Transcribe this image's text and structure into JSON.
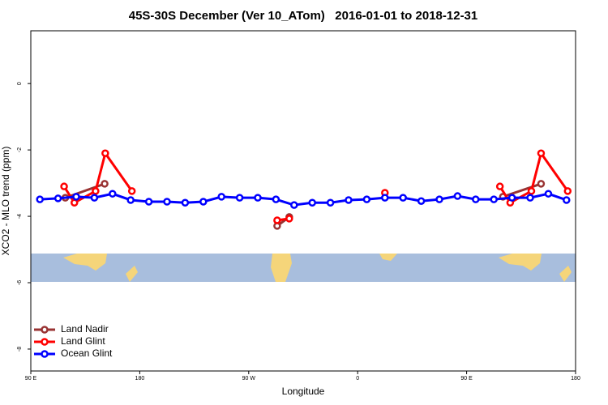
{
  "chart_data": {
    "type": "line",
    "title": "45S-30S December (Ver 10_ATom)   2016-01-01 to 2018-12-31",
    "xlabel": "Longitude",
    "ylabel": "XCO2 - MLO trend (ppm)",
    "xlim": [
      90,
      540
    ],
    "xticks": [
      {
        "value": 90,
        "label": "90 E"
      },
      180,
      {
        "value": 270,
        "label": "90 W"
      },
      {
        "value": 360,
        "label": "0"
      },
      {
        "value": 450,
        "label": "90 E"
      },
      {
        "value": 540,
        "label": "180"
      }
    ],
    "ylim": [
      -8.66,
      1.59
    ],
    "yticks": [
      0,
      -2,
      -4,
      -6,
      -8
    ],
    "legend": "bottom-left",
    "series": [
      {
        "name": "Land Nadir",
        "color": "#993333",
        "x": [
          118.5,
          151,
          null,
          293.5,
          303.5,
          null,
          480,
          511.5
        ],
        "values": [
          -3.44,
          -3.02,
          null,
          -4.29,
          -4.02,
          null,
          -3.41,
          -3.02
        ]
      },
      {
        "name": "Land Glint",
        "color": "#ff0000",
        "x": [
          117.5,
          126,
          143.5,
          151.5,
          173.5,
          null,
          293.5,
          303.5,
          null,
          382.5,
          null,
          477.5,
          486,
          503.5,
          511.5,
          533.5
        ],
        "values": [
          -3.1,
          -3.59,
          -3.24,
          -2.1,
          -3.24,
          null,
          -4.12,
          -4.07,
          null,
          -3.29,
          null,
          -3.1,
          -3.59,
          -3.24,
          -2.1,
          -3.24
        ]
      },
      {
        "name": "Ocean Glint",
        "color": "#0000ff",
        "x": [
          97.5,
          112.5,
          127.5,
          142.5,
          157.5,
          172.5,
          187.5,
          202.5,
          217.5,
          232.5,
          247.5,
          262.5,
          277.5,
          292.5,
          307.5,
          322.5,
          337.5,
          352.5,
          367.5,
          382.5,
          397.5,
          412.5,
          427.5,
          442.5,
          457.5,
          472.5,
          487.5,
          502.5,
          517.5,
          532.5
        ],
        "values": [
          -3.49,
          -3.46,
          -3.41,
          -3.44,
          -3.32,
          -3.51,
          -3.56,
          -3.56,
          -3.59,
          -3.56,
          -3.41,
          -3.44,
          -3.44,
          -3.49,
          -3.66,
          -3.59,
          -3.59,
          -3.51,
          -3.49,
          -3.44,
          -3.44,
          -3.54,
          -3.49,
          -3.39,
          -3.49,
          -3.49,
          -3.44,
          -3.44,
          -3.32,
          -3.51
        ]
      }
    ]
  }
}
